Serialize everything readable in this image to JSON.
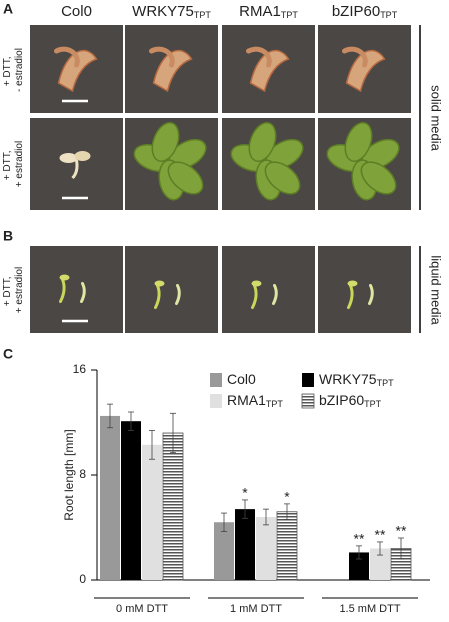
{
  "panel_a": {
    "label": "A",
    "columns": [
      {
        "name": "Col0"
      },
      {
        "name": "WRKY75",
        "subscript": "TPT"
      },
      {
        "name": "RMA1",
        "subscript": "TPT"
      },
      {
        "name": "bZIP60",
        "subscript": "TPT"
      }
    ],
    "rows": [
      [
        "+ DTT,",
        "- estradiol"
      ],
      [
        "+ DTT,",
        "+ estradiol"
      ]
    ],
    "side_label": "solid media"
  },
  "panel_b": {
    "label": "B",
    "row": [
      "+ DTT,",
      "+ estradiol"
    ],
    "side_label": "liquid media"
  },
  "chart_data": {
    "type": "bar",
    "panel_label": "C",
    "y_label": "Root length [mm]",
    "categories": [
      "0 mM DTT",
      "1 mM DTT",
      "1.5 mM DTT"
    ],
    "ylim": [
      0,
      16
    ],
    "yticks": [
      0,
      8,
      16
    ],
    "series": [
      {
        "name": "Col0",
        "color": "#999999",
        "values": [
          12.5,
          4.4,
          null
        ],
        "errors": [
          0.9,
          0.7,
          null
        ],
        "significance": [
          null,
          null,
          null
        ]
      },
      {
        "name": "WRKY75",
        "subscript": "TPT",
        "color": "#000000",
        "values": [
          12.1,
          5.4,
          2.1
        ],
        "errors": [
          0.7,
          0.7,
          0.5
        ],
        "significance": [
          null,
          "*",
          "**"
        ]
      },
      {
        "name": "RMA1",
        "subscript": "TPT",
        "color": "#e0e0e0",
        "values": [
          10.3,
          4.8,
          2.4
        ],
        "errors": [
          1.1,
          0.6,
          0.5
        ],
        "significance": [
          null,
          null,
          "**"
        ]
      },
      {
        "name": "bZIP60",
        "subscript": "TPT",
        "color": "#555555",
        "hatch": "horizontal",
        "values": [
          11.2,
          5.2,
          2.4
        ],
        "errors": [
          1.5,
          0.6,
          0.8
        ],
        "significance": [
          null,
          "*",
          "**"
        ]
      }
    ]
  }
}
